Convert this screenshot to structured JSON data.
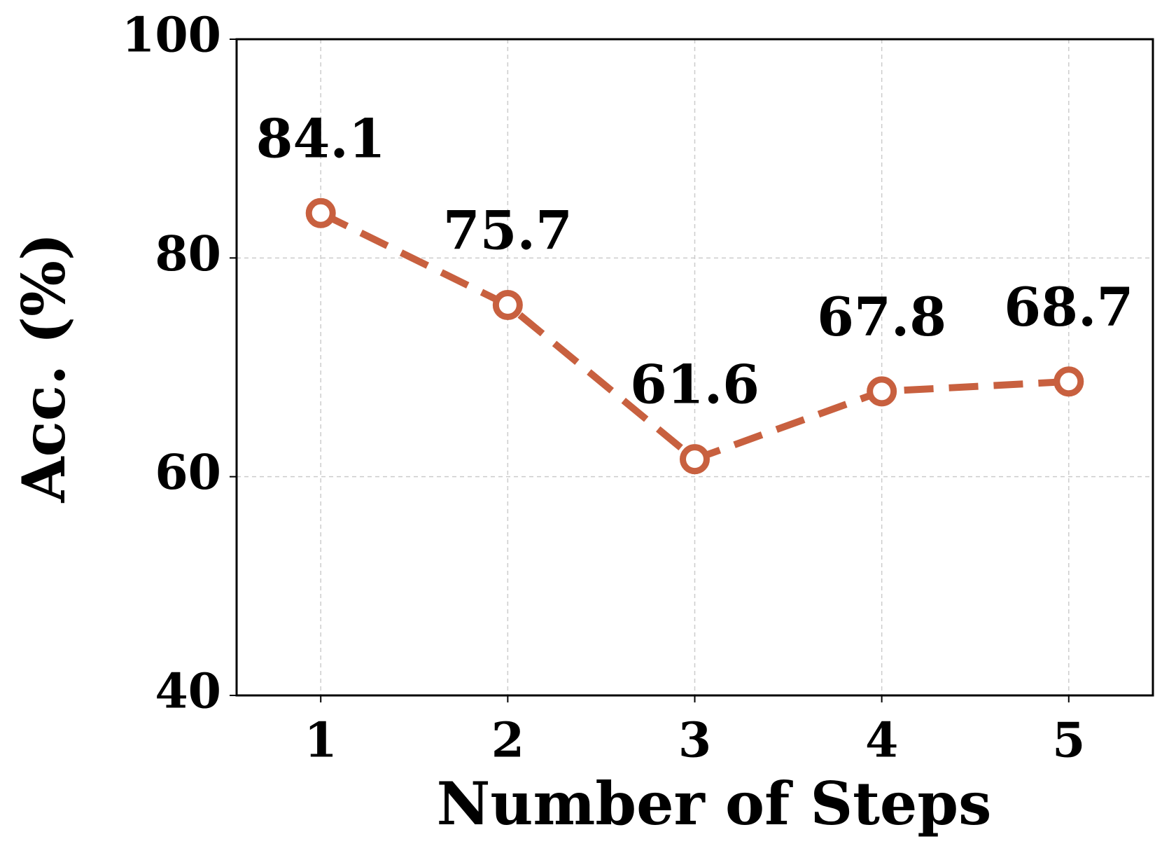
{
  "chart_data": {
    "type": "line",
    "x_label": "Number of Steps",
    "y_label": "Acc. (%)",
    "x": [
      1,
      2,
      3,
      4,
      5
    ],
    "series": [
      {
        "color": "#c8603f",
        "values": [
          84.1,
          75.7,
          61.6,
          67.8,
          68.7
        ]
      }
    ],
    "xlim": [
      0.55,
      5.45
    ],
    "xticks": [
      1,
      2,
      3,
      4,
      5
    ],
    "ylim": [
      40,
      100
    ],
    "yticks": [
      40,
      60,
      80,
      100
    ],
    "grid": true
  }
}
